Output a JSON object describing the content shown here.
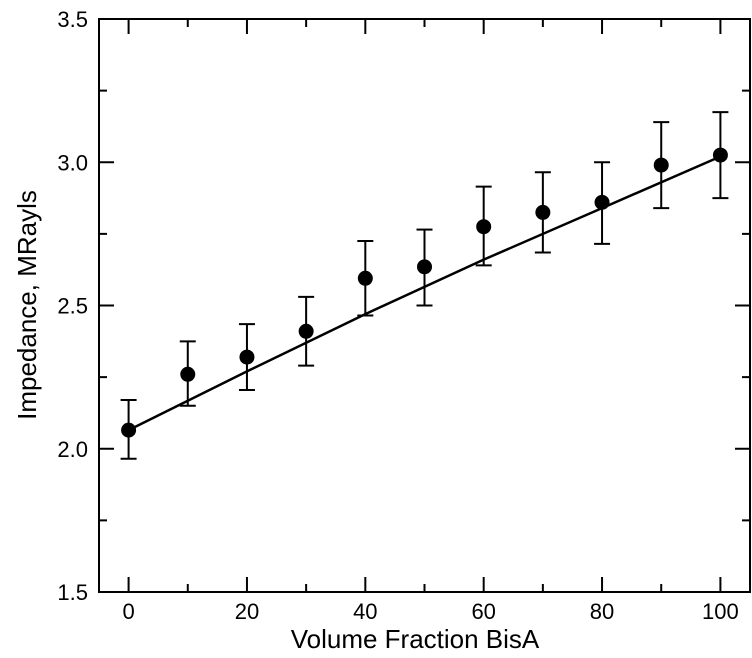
{
  "chart_data": {
    "type": "scatter",
    "title": "",
    "xlabel": "Volume Fraction BisA",
    "ylabel": "Impedance, MRayls",
    "xlim": [
      -5,
      105
    ],
    "ylim": [
      1.5,
      3.5
    ],
    "xticks": [
      0,
      20,
      40,
      60,
      80,
      100
    ],
    "xtick_labels": [
      "0",
      "20",
      "40",
      "60",
      "80",
      "100"
    ],
    "yticks": [
      1.5,
      2.0,
      2.5,
      3.0,
      3.5
    ],
    "ytick_labels": [
      "1.5",
      "2.0",
      "2.5",
      "3.0",
      "3.5"
    ],
    "grid": false,
    "legend": "none",
    "series": [
      {
        "marker": "filled-circle",
        "color": "#000000",
        "x": [
          0,
          10,
          20,
          30,
          40,
          50,
          60,
          70,
          80,
          90,
          100
        ],
        "y": [
          2.065,
          2.26,
          2.32,
          2.41,
          2.595,
          2.635,
          2.775,
          2.825,
          2.86,
          2.99,
          3.025
        ],
        "y_err_upper": [
          2.17,
          2.375,
          2.435,
          2.53,
          2.725,
          2.765,
          2.915,
          2.965,
          3.0,
          3.14,
          3.175
        ],
        "y_err_lower": [
          1.965,
          2.15,
          2.205,
          2.29,
          2.465,
          2.5,
          2.64,
          2.685,
          2.715,
          2.84,
          2.875
        ]
      }
    ],
    "fit_line": {
      "color": "#000000",
      "x": [
        0,
        20,
        40,
        60,
        80,
        100
      ],
      "y": [
        2.065,
        2.27,
        2.47,
        2.66,
        2.84,
        3.02
      ]
    }
  }
}
